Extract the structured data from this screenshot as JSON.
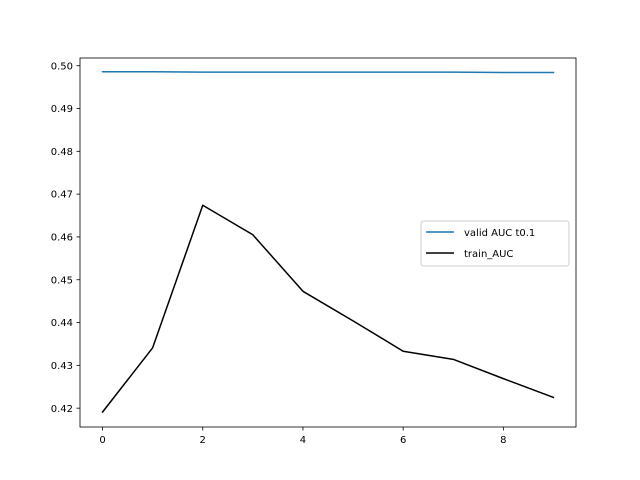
{
  "chart_data": {
    "type": "line",
    "title": "",
    "xlabel": "",
    "ylabel": "",
    "xlim": [
      -0.45,
      9.45
    ],
    "ylim": [
      0.4156,
      0.5018
    ],
    "xticks": [
      0,
      2,
      4,
      6,
      8
    ],
    "xtick_labels": [
      "0",
      "2",
      "4",
      "6",
      "8"
    ],
    "yticks": [
      0.42,
      0.43,
      0.44,
      0.45,
      0.46,
      0.47,
      0.48,
      0.49,
      0.5
    ],
    "ytick_labels": [
      "0.42",
      "0.43",
      "0.44",
      "0.45",
      "0.46",
      "0.47",
      "0.48",
      "0.49",
      "0.50"
    ],
    "grid": false,
    "legend_position": "center-right",
    "x": [
      0,
      1,
      2,
      3,
      4,
      5,
      6,
      7,
      8,
      9
    ],
    "series": [
      {
        "name": "valid AUC t0.1",
        "color": "#1f77b4",
        "values": [
          0.4986,
          0.4986,
          0.4985,
          0.4985,
          0.4985,
          0.4985,
          0.4985,
          0.4985,
          0.4984,
          0.4984
        ]
      },
      {
        "name": "train_AUC",
        "color": "#000000",
        "values": [
          0.4191,
          0.4341,
          0.4674,
          0.4605,
          0.4473,
          0.4404,
          0.4333,
          0.4314,
          0.4269,
          0.4225
        ]
      }
    ]
  }
}
